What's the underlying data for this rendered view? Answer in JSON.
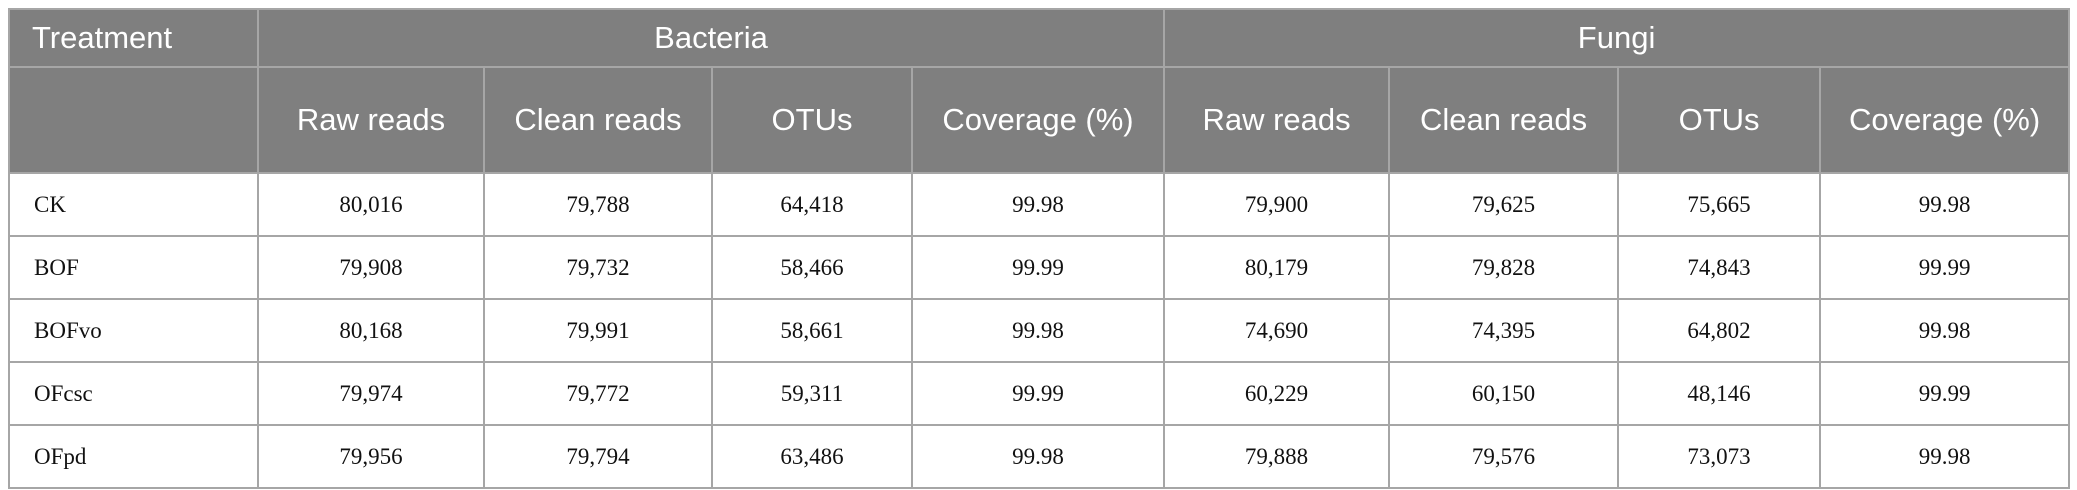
{
  "table": {
    "group_row": [
      "Treatment",
      "Bacteria",
      "Fungi"
    ],
    "sub_row": [
      "Raw reads",
      "Clean reads",
      "OTUs",
      "Coverage (%)",
      "Raw reads",
      "Clean reads",
      "OTUs",
      "Coverage (%)"
    ],
    "rows": [
      [
        "CK",
        "80,016",
        "79,788",
        "64,418",
        "99.98",
        "79,900",
        "79,625",
        "75,665",
        "99.98"
      ],
      [
        "BOF",
        "79,908",
        "79,732",
        "58,466",
        "99.99",
        "80,179",
        "79,828",
        "74,843",
        "99.99"
      ],
      [
        "BOFvo",
        "80,168",
        "79,991",
        "58,661",
        "99.98",
        "74,690",
        "74,395",
        "64,802",
        "99.98"
      ],
      [
        "OFcsc",
        "79,974",
        "79,772",
        "59,311",
        "99.99",
        "60,229",
        "60,150",
        "48,146",
        "99.99"
      ],
      [
        "OFpd",
        "79,956",
        "79,794",
        "63,486",
        "99.98",
        "79,888",
        "79,576",
        "73,073",
        "99.98"
      ]
    ]
  }
}
